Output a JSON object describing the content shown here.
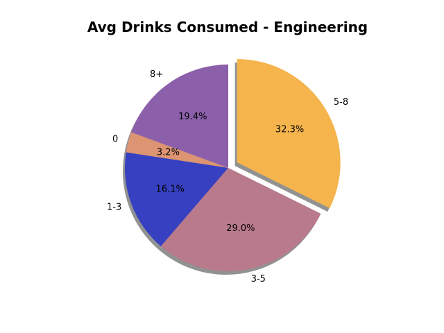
{
  "chart_data": {
    "type": "pie",
    "title": "Avg Drinks Consumed - Engineering",
    "start_angle_deg": 90,
    "direction": "counterclockwise",
    "shadow": true,
    "slices": [
      {
        "label": "8+",
        "value": 19.4,
        "pct_label": "19.4%",
        "color": "#8c5fab",
        "explode": 0
      },
      {
        "label": "0",
        "value": 3.2,
        "pct_label": "3.2%",
        "color": "#dc9472",
        "explode": 0
      },
      {
        "label": "1-3",
        "value": 16.1,
        "pct_label": "16.1%",
        "color": "#3740c0",
        "explode": 0
      },
      {
        "label": "3-5",
        "value": 29.0,
        "pct_label": "29.0%",
        "color": "#b97a8c",
        "explode": 0
      },
      {
        "label": "5-8",
        "value": 32.3,
        "pct_label": "32.3%",
        "color": "#f5b44c",
        "explode": 0.1
      }
    ]
  }
}
